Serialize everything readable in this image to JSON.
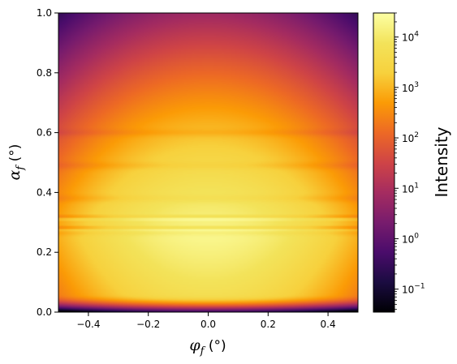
{
  "chart_data": {
    "type": "heatmap",
    "title": "",
    "xlabel": "φ_f (°)",
    "ylabel": "α_f (°)",
    "x": {
      "label": "φf (°)",
      "lim": [
        -0.5,
        0.5
      ],
      "ticks": [
        -0.4,
        -0.2,
        0.0,
        0.2,
        0.4
      ],
      "tick_labels": [
        "−0.4",
        "−0.2",
        "0.0",
        "0.2",
        "0.4"
      ]
    },
    "y": {
      "label": "αf (°)",
      "lim": [
        0.0,
        1.0
      ],
      "ticks": [
        0.0,
        0.2,
        0.4,
        0.6,
        0.8,
        1.0
      ],
      "tick_labels": [
        "0.0",
        "0.2",
        "0.4",
        "0.6",
        "0.8",
        "1.0"
      ]
    },
    "colorbar": {
      "label": "Intensity",
      "scale": "log",
      "colormap": "inferno",
      "range": [
        0.035,
        30000
      ],
      "ticks": [
        {
          "value": 0.1,
          "base": "10",
          "exp": "−1"
        },
        {
          "value": 1,
          "base": "10",
          "exp": "0"
        },
        {
          "value": 10,
          "base": "10",
          "exp": "1"
        },
        {
          "value": 100,
          "base": "10",
          "exp": "2"
        },
        {
          "value": 1000,
          "base": "10",
          "exp": "3"
        },
        {
          "value": 10000,
          "base": "10",
          "exp": "4"
        }
      ]
    },
    "intensity_features": {
      "peak": {
        "phi": 0.0,
        "alpha": 0.25,
        "log10_intensity": 4.3
      },
      "bright_lines_alpha": [
        0.273,
        0.31
      ],
      "faint_fringes_alpha": [
        0.25,
        0.36,
        0.47,
        0.58
      ],
      "low_edge_cutoff_alpha": 0.02
    }
  }
}
